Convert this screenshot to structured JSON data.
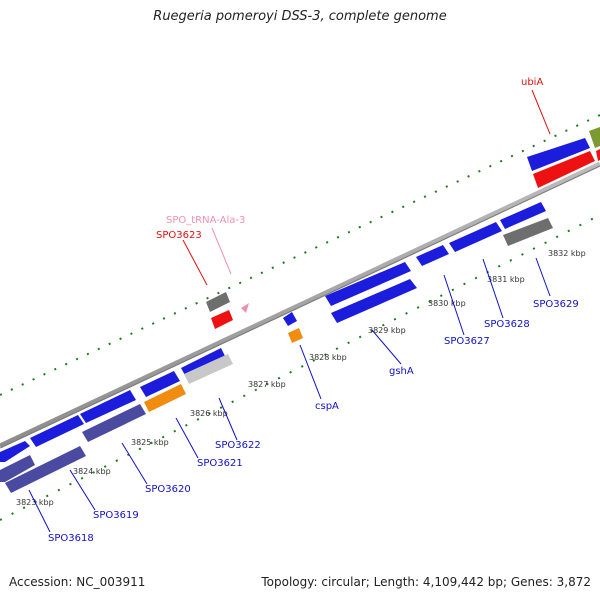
{
  "title": "Ruegeria pomeroyi DSS-3, complete genome",
  "footer": {
    "accession": "Accession: NC_003911",
    "summary": "Topology: circular; Length: 4,109,442 bp; Genes: 3,872"
  },
  "colors": {
    "backbone": "#a9a9a9",
    "gene_blue": "#1c1cdc",
    "gene_purple": "#4a4aa0",
    "gene_red": "#ee1111",
    "gene_orange": "#f08c10",
    "gene_gray": "#6e6e6e",
    "gene_lightgray": "#c8c8c8",
    "gene_olive": "#7b9a34",
    "gc_green": "#1f7a1f",
    "label_blue": "#1010c8",
    "label_red": "#e01010",
    "label_pink": "#f090b0"
  },
  "scale_labels": [
    "3823 kbp",
    "3824 kbp",
    "3825 kbp",
    "3826 kbp",
    "3827 kbp",
    "3828 kbp",
    "3829 kbp",
    "3830 kbp",
    "3831 kbp",
    "3832 kbp"
  ],
  "gene_labels": [
    "SPO3618",
    "SPO3619",
    "SPO3620",
    "SPO3621",
    "SPO3622",
    "cspA",
    "gshA",
    "SPO3627",
    "SPO3628",
    "SPO3629",
    "ubiA",
    "SPO3623",
    "SPO_tRNA-Ala-3"
  ]
}
